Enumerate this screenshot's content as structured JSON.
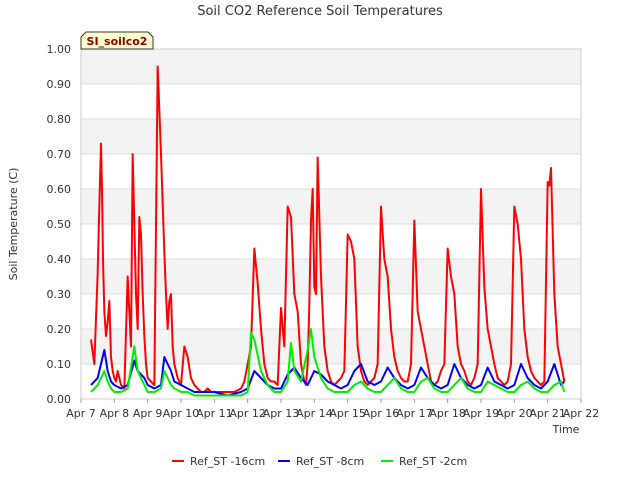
{
  "chart_data": {
    "type": "line",
    "title": "Soil CO2 Reference Soil Temperatures",
    "xlabel": "Time",
    "ylabel": "Soil Temperature (C)",
    "badge": "SI_soilco2",
    "ylim": [
      0.0,
      1.0
    ],
    "xlim": [
      7,
      22
    ],
    "y_ticks": [
      "0.00",
      "0.10",
      "0.20",
      "0.30",
      "0.40",
      "0.50",
      "0.60",
      "0.70",
      "0.80",
      "0.90",
      "1.00"
    ],
    "x_ticks": [
      {
        "value": 7,
        "label": "Apr 7"
      },
      {
        "value": 8,
        "label": "Apr 8"
      },
      {
        "value": 9,
        "label": "Apr 9"
      },
      {
        "value": 10,
        "label": "Apr 10"
      },
      {
        "value": 11,
        "label": "Apr 11"
      },
      {
        "value": 12,
        "label": "Apr 12"
      },
      {
        "value": 13,
        "label": "Apr 13"
      },
      {
        "value": 14,
        "label": "Apr 14"
      },
      {
        "value": 15,
        "label": "Apr 15"
      },
      {
        "value": 16,
        "label": "Apr 16"
      },
      {
        "value": 17,
        "label": "Apr 17"
      },
      {
        "value": 18,
        "label": "Apr 18"
      },
      {
        "value": 19,
        "label": "Apr 19"
      },
      {
        "value": 20,
        "label": "Apr 20"
      },
      {
        "value": 21,
        "label": "Apr 21"
      },
      {
        "value": 22,
        "label": "Apr 22"
      }
    ],
    "grid": true,
    "legend_position": "bottom",
    "series": [
      {
        "name": "Ref_ST -16cm",
        "color": "#ff0000",
        "x": [
          7.3,
          7.4,
          7.5,
          7.55,
          7.6,
          7.63,
          7.66,
          7.7,
          7.75,
          7.8,
          7.85,
          7.9,
          7.95,
          8.0,
          8.05,
          8.1,
          8.2,
          8.3,
          8.4,
          8.5,
          8.55,
          8.6,
          8.65,
          8.7,
          8.75,
          8.8,
          8.85,
          8.9,
          8.95,
          9.0,
          9.1,
          9.2,
          9.3,
          9.4,
          9.5,
          9.55,
          9.6,
          9.65,
          9.7,
          9.75,
          9.8,
          9.85,
          9.9,
          9.95,
          10.0,
          10.1,
          10.2,
          10.3,
          10.4,
          10.5,
          10.6,
          10.7,
          10.8,
          10.9,
          11.0,
          11.2,
          11.4,
          11.6,
          11.8,
          11.9,
          12.0,
          12.1,
          12.2,
          12.3,
          12.4,
          12.5,
          12.6,
          12.7,
          12.8,
          12.9,
          13.0,
          13.1,
          13.2,
          13.3,
          13.4,
          13.5,
          13.6,
          13.7,
          13.75,
          13.8,
          13.85,
          13.9,
          13.95,
          14.0,
          14.05,
          14.1,
          14.2,
          14.3,
          14.4,
          14.5,
          14.6,
          14.7,
          14.8,
          14.9,
          15.0,
          15.1,
          15.2,
          15.3,
          15.4,
          15.5,
          15.6,
          15.7,
          15.8,
          15.9,
          16.0,
          16.1,
          16.2,
          16.3,
          16.4,
          16.5,
          16.6,
          16.7,
          16.8,
          16.9,
          17.0,
          17.1,
          17.2,
          17.3,
          17.4,
          17.5,
          17.6,
          17.7,
          17.8,
          17.9,
          18.0,
          18.1,
          18.2,
          18.3,
          18.4,
          18.5,
          18.6,
          18.7,
          18.8,
          18.9,
          19.0,
          19.1,
          19.2,
          19.3,
          19.4,
          19.5,
          19.6,
          19.7,
          19.8,
          19.9,
          20.0,
          20.1,
          20.2,
          20.3,
          20.4,
          20.5,
          20.6,
          20.7,
          20.8,
          20.9,
          21.0,
          21.05,
          21.1,
          21.2,
          21.3,
          21.4,
          21.5
        ],
        "y": [
          0.17,
          0.1,
          0.36,
          0.55,
          0.73,
          0.6,
          0.4,
          0.25,
          0.18,
          0.22,
          0.28,
          0.12,
          0.08,
          0.06,
          0.05,
          0.08,
          0.04,
          0.03,
          0.35,
          0.15,
          0.7,
          0.5,
          0.3,
          0.2,
          0.52,
          0.47,
          0.3,
          0.18,
          0.1,
          0.06,
          0.05,
          0.04,
          0.95,
          0.7,
          0.42,
          0.3,
          0.2,
          0.28,
          0.3,
          0.15,
          0.1,
          0.08,
          0.06,
          0.05,
          0.04,
          0.15,
          0.12,
          0.06,
          0.04,
          0.03,
          0.02,
          0.02,
          0.03,
          0.02,
          0.02,
          0.02,
          0.02,
          0.02,
          0.03,
          0.05,
          0.1,
          0.15,
          0.43,
          0.33,
          0.2,
          0.1,
          0.06,
          0.05,
          0.05,
          0.04,
          0.26,
          0.15,
          0.55,
          0.52,
          0.3,
          0.25,
          0.1,
          0.05,
          0.04,
          0.1,
          0.27,
          0.51,
          0.6,
          0.32,
          0.3,
          0.69,
          0.35,
          0.15,
          0.08,
          0.05,
          0.04,
          0.05,
          0.06,
          0.08,
          0.47,
          0.45,
          0.4,
          0.15,
          0.08,
          0.05,
          0.04,
          0.05,
          0.06,
          0.1,
          0.55,
          0.4,
          0.35,
          0.2,
          0.12,
          0.08,
          0.06,
          0.05,
          0.05,
          0.1,
          0.51,
          0.25,
          0.2,
          0.15,
          0.1,
          0.05,
          0.04,
          0.05,
          0.08,
          0.1,
          0.43,
          0.35,
          0.3,
          0.15,
          0.1,
          0.08,
          0.05,
          0.04,
          0.06,
          0.1,
          0.6,
          0.32,
          0.2,
          0.15,
          0.1,
          0.06,
          0.05,
          0.04,
          0.05,
          0.1,
          0.55,
          0.5,
          0.4,
          0.2,
          0.12,
          0.08,
          0.06,
          0.05,
          0.04,
          0.05,
          0.62,
          0.61,
          0.66,
          0.3,
          0.15,
          0.1,
          0.05
        ]
      },
      {
        "name": "Ref_ST -8cm",
        "color": "#0000ff",
        "x": [
          7.3,
          7.5,
          7.6,
          7.7,
          7.8,
          7.9,
          8.0,
          8.2,
          8.4,
          8.6,
          8.7,
          8.8,
          8.9,
          9.0,
          9.2,
          9.4,
          9.5,
          9.6,
          9.7,
          9.8,
          10.0,
          10.2,
          10.4,
          10.6,
          10.8,
          11.0,
          11.4,
          11.8,
          12.0,
          12.2,
          12.4,
          12.6,
          12.8,
          13.0,
          13.2,
          13.4,
          13.6,
          13.8,
          14.0,
          14.2,
          14.4,
          14.6,
          14.8,
          15.0,
          15.2,
          15.4,
          15.6,
          15.8,
          16.0,
          16.2,
          16.4,
          16.6,
          16.8,
          17.0,
          17.2,
          17.4,
          17.6,
          17.8,
          18.0,
          18.2,
          18.4,
          18.6,
          18.8,
          19.0,
          19.2,
          19.4,
          19.6,
          19.8,
          20.0,
          20.2,
          20.4,
          20.6,
          20.8,
          21.0,
          21.2,
          21.3,
          21.4,
          21.5
        ],
        "y": [
          0.04,
          0.06,
          0.1,
          0.14,
          0.08,
          0.05,
          0.04,
          0.03,
          0.04,
          0.11,
          0.08,
          0.07,
          0.06,
          0.04,
          0.03,
          0.04,
          0.12,
          0.1,
          0.08,
          0.05,
          0.04,
          0.03,
          0.02,
          0.02,
          0.02,
          0.02,
          0.01,
          0.02,
          0.03,
          0.08,
          0.06,
          0.04,
          0.03,
          0.03,
          0.07,
          0.09,
          0.06,
          0.04,
          0.08,
          0.07,
          0.05,
          0.04,
          0.03,
          0.04,
          0.08,
          0.1,
          0.05,
          0.04,
          0.05,
          0.09,
          0.06,
          0.04,
          0.03,
          0.04,
          0.09,
          0.06,
          0.04,
          0.03,
          0.04,
          0.1,
          0.06,
          0.04,
          0.03,
          0.04,
          0.09,
          0.05,
          0.04,
          0.03,
          0.04,
          0.1,
          0.06,
          0.04,
          0.03,
          0.05,
          0.1,
          0.07,
          0.04,
          0.05
        ]
      },
      {
        "name": "Ref_ST -2cm",
        "color": "#00ee00",
        "x": [
          7.3,
          7.5,
          7.6,
          7.7,
          7.8,
          7.9,
          8.0,
          8.2,
          8.4,
          8.6,
          8.7,
          8.8,
          8.9,
          9.0,
          9.2,
          9.4,
          9.5,
          9.6,
          9.7,
          9.8,
          10.0,
          10.2,
          10.4,
          10.6,
          10.8,
          11.0,
          11.4,
          11.8,
          12.0,
          12.1,
          12.2,
          12.4,
          12.6,
          12.8,
          13.0,
          13.2,
          13.3,
          13.4,
          13.6,
          13.8,
          13.9,
          14.0,
          14.2,
          14.4,
          14.6,
          14.8,
          15.0,
          15.2,
          15.4,
          15.6,
          15.8,
          16.0,
          16.2,
          16.4,
          16.6,
          16.8,
          17.0,
          17.2,
          17.4,
          17.6,
          17.8,
          18.0,
          18.2,
          18.4,
          18.6,
          18.8,
          19.0,
          19.2,
          19.4,
          19.6,
          19.8,
          20.0,
          20.2,
          20.4,
          20.6,
          20.8,
          21.0,
          21.2,
          21.4,
          21.5
        ],
        "y": [
          0.02,
          0.04,
          0.06,
          0.08,
          0.05,
          0.03,
          0.02,
          0.02,
          0.03,
          0.15,
          0.08,
          0.06,
          0.04,
          0.02,
          0.02,
          0.03,
          0.08,
          0.06,
          0.04,
          0.03,
          0.02,
          0.02,
          0.01,
          0.01,
          0.01,
          0.01,
          0.01,
          0.01,
          0.02,
          0.19,
          0.17,
          0.08,
          0.04,
          0.02,
          0.02,
          0.05,
          0.16,
          0.08,
          0.05,
          0.14,
          0.2,
          0.12,
          0.06,
          0.03,
          0.02,
          0.02,
          0.02,
          0.04,
          0.05,
          0.03,
          0.02,
          0.02,
          0.04,
          0.06,
          0.03,
          0.02,
          0.02,
          0.05,
          0.06,
          0.03,
          0.02,
          0.02,
          0.04,
          0.06,
          0.03,
          0.02,
          0.02,
          0.05,
          0.04,
          0.03,
          0.02,
          0.02,
          0.04,
          0.05,
          0.03,
          0.02,
          0.02,
          0.04,
          0.05,
          0.02
        ]
      }
    ]
  }
}
